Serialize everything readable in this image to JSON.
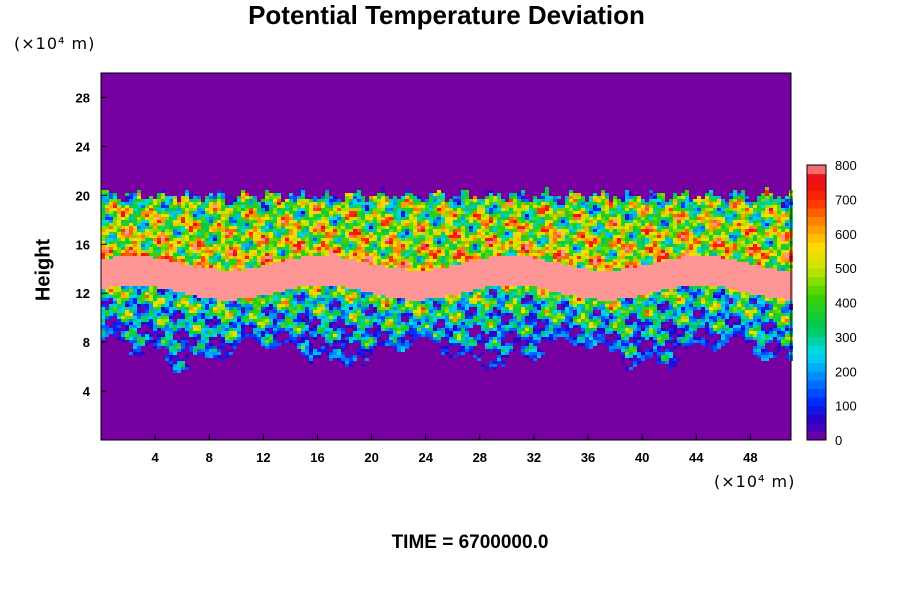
{
  "chart_data": {
    "type": "heatmap",
    "title": "Potential Temperature Deviation",
    "ylabel": "Height",
    "xlabel": "",
    "x_unit": "(×10⁴ m)",
    "y_unit": "(×10⁴ m)",
    "xlim": [
      0,
      51
    ],
    "ylim": [
      0,
      30
    ],
    "xticks": [
      "4",
      "8",
      "12",
      "16",
      "20",
      "24",
      "28",
      "32",
      "36",
      "40",
      "44",
      "48"
    ],
    "xtick_values": [
      4,
      8,
      12,
      16,
      20,
      24,
      28,
      32,
      36,
      40,
      44,
      48
    ],
    "yticks": [
      "4",
      "8",
      "12",
      "16",
      "20",
      "24",
      "28"
    ],
    "ytick_values": [
      4,
      8,
      12,
      16,
      20,
      24,
      28
    ],
    "colorbar": {
      "min": 0,
      "max": 800,
      "step": 25,
      "ticks": [
        "0",
        "100",
        "200",
        "300",
        "400",
        "500",
        "600",
        "700",
        "800"
      ],
      "tick_values": [
        0,
        100,
        200,
        300,
        400,
        500,
        600,
        700,
        800
      ]
    },
    "field_summary": {
      "background_value": 0,
      "turbulent_layer": [
        7,
        20
      ],
      "core_layer": [
        12,
        14.5
      ],
      "core_value": 800
    },
    "grid": false,
    "colorbar_position": "right"
  },
  "footer": {
    "time_label": "TIME = 6700000.0"
  }
}
